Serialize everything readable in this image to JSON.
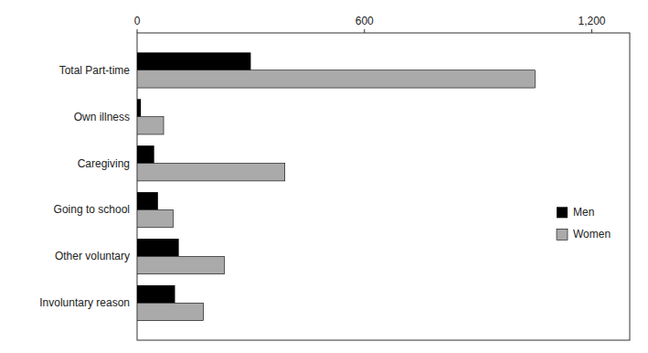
{
  "chart_data": {
    "type": "bar",
    "orientation": "horizontal",
    "categories": [
      "Involuntary reason",
      "Other voluntary",
      "Going to school",
      "Caregiving",
      "Own illness",
      "Total Part-time"
    ],
    "series": [
      {
        "name": "Men",
        "color": "#000000",
        "values": [
          100,
          110,
          55,
          45,
          10,
          300
        ]
      },
      {
        "name": "Women",
        "color": "#aaaaaa",
        "values": [
          175,
          230,
          95,
          390,
          70,
          1050
        ]
      }
    ],
    "xlim": [
      0,
      1300
    ],
    "xticks": [
      0,
      600,
      {
        "value": 1200,
        "label": "1,200"
      }
    ],
    "grid": false,
    "legend": "right"
  }
}
